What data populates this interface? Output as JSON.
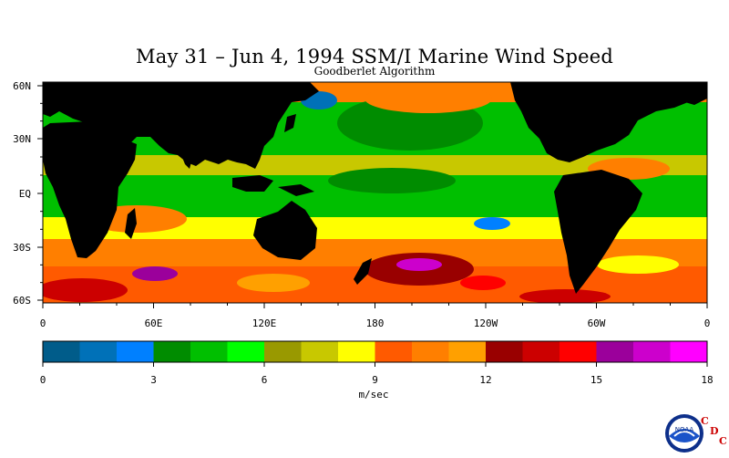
{
  "title": "May 31 – Jun 4, 1994 SSM/I Marine Wind Speed",
  "subtitle": "Goodberlet Algorithm",
  "map": {
    "lat_labels": [
      "60N",
      "30N",
      "EQ",
      "30S",
      "60S"
    ],
    "lon_labels": [
      "0",
      "60E",
      "120E",
      "180",
      "120W",
      "60W",
      "0"
    ],
    "land_color": "#000000"
  },
  "colorbar": {
    "colors": [
      "#005c8a",
      "#0071b8",
      "#0080ff",
      "#008c00",
      "#00bf00",
      "#00ff00",
      "#999900",
      "#c8c800",
      "#ffff00",
      "#ff5a00",
      "#ff7f00",
      "#ffa000",
      "#990000",
      "#cc0000",
      "#ff0000",
      "#9b009b",
      "#cc00cc",
      "#ff00ff"
    ],
    "tick_labels": [
      "0",
      "3",
      "6",
      "9",
      "12",
      "15",
      "18"
    ],
    "min": 0,
    "max": 18,
    "unit": "m/sec"
  },
  "logo": {
    "text": "NOAA",
    "cdc_letters": [
      "C",
      "D",
      "C"
    ],
    "cdc_color": "#cc0000"
  }
}
